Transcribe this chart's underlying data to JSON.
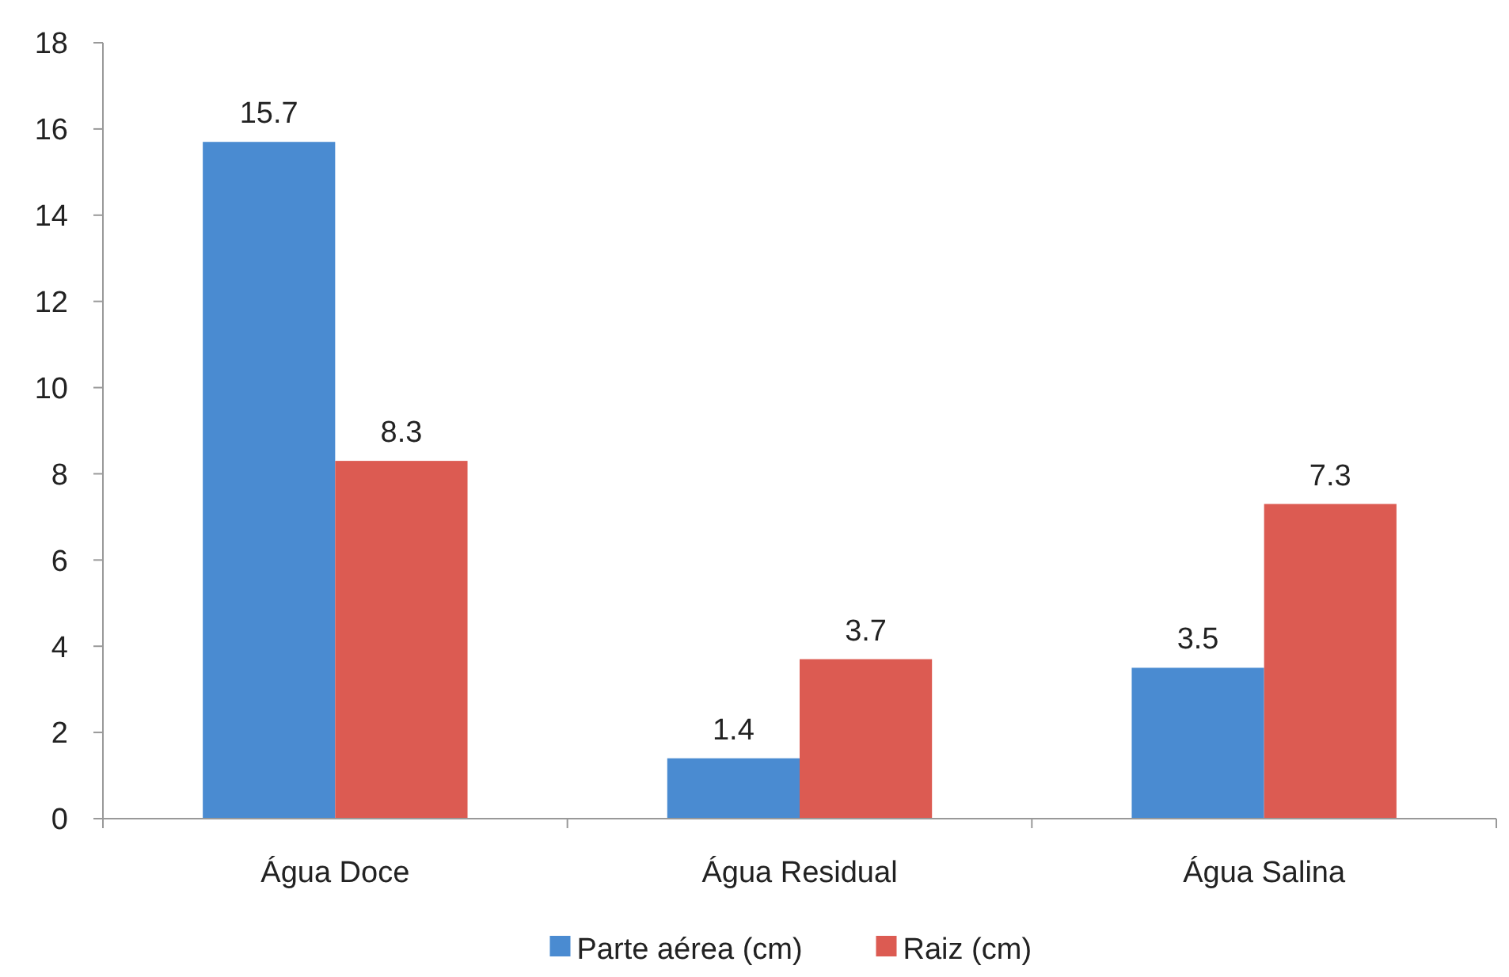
{
  "chart_data": {
    "type": "bar",
    "categories": [
      "Água Doce",
      "Água Residual",
      "Água Salina"
    ],
    "series": [
      {
        "name": "Parte aérea (cm)",
        "color": "#4a8bd1",
        "values": [
          15.7,
          1.4,
          3.5
        ]
      },
      {
        "name": "Raiz (cm)",
        "color": "#dc5b52",
        "values": [
          8.3,
          3.7,
          7.3
        ]
      }
    ],
    "ylim": [
      0,
      18
    ],
    "yticks": [
      0,
      2,
      4,
      6,
      8,
      10,
      12,
      14,
      16,
      18
    ],
    "data_labels": true,
    "legend": "bottom",
    "grid": false
  }
}
